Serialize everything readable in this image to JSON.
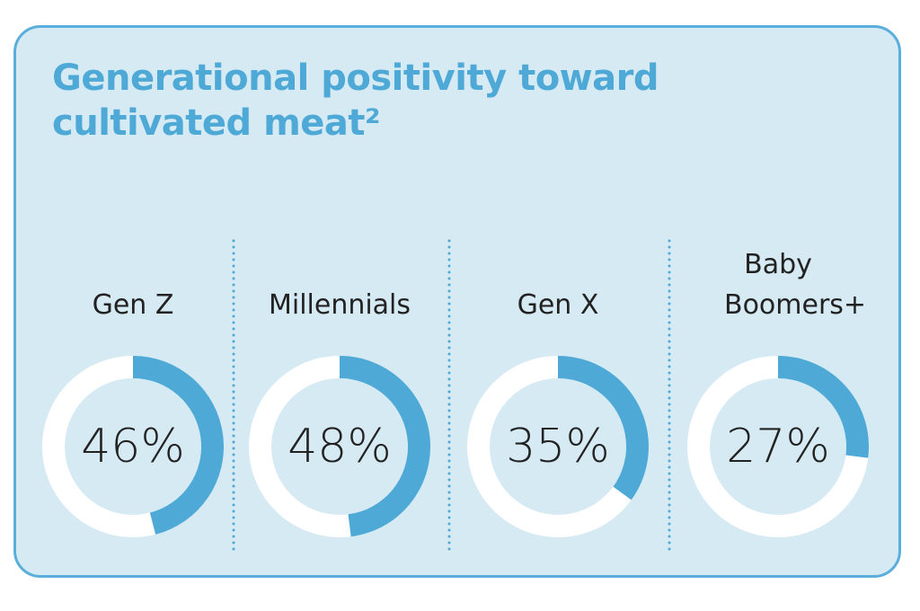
{
  "chart_data": {
    "type": "donut",
    "title": "Generational positivity toward cultivated meat²",
    "categories": [
      "Gen Z",
      "Millennials",
      "Gen X",
      "Baby Boomers+"
    ],
    "values": [
      46,
      48,
      35,
      27
    ],
    "value_labels": [
      "46%",
      "48%",
      "35%",
      "27%"
    ],
    "color": "#4ea9d6"
  }
}
